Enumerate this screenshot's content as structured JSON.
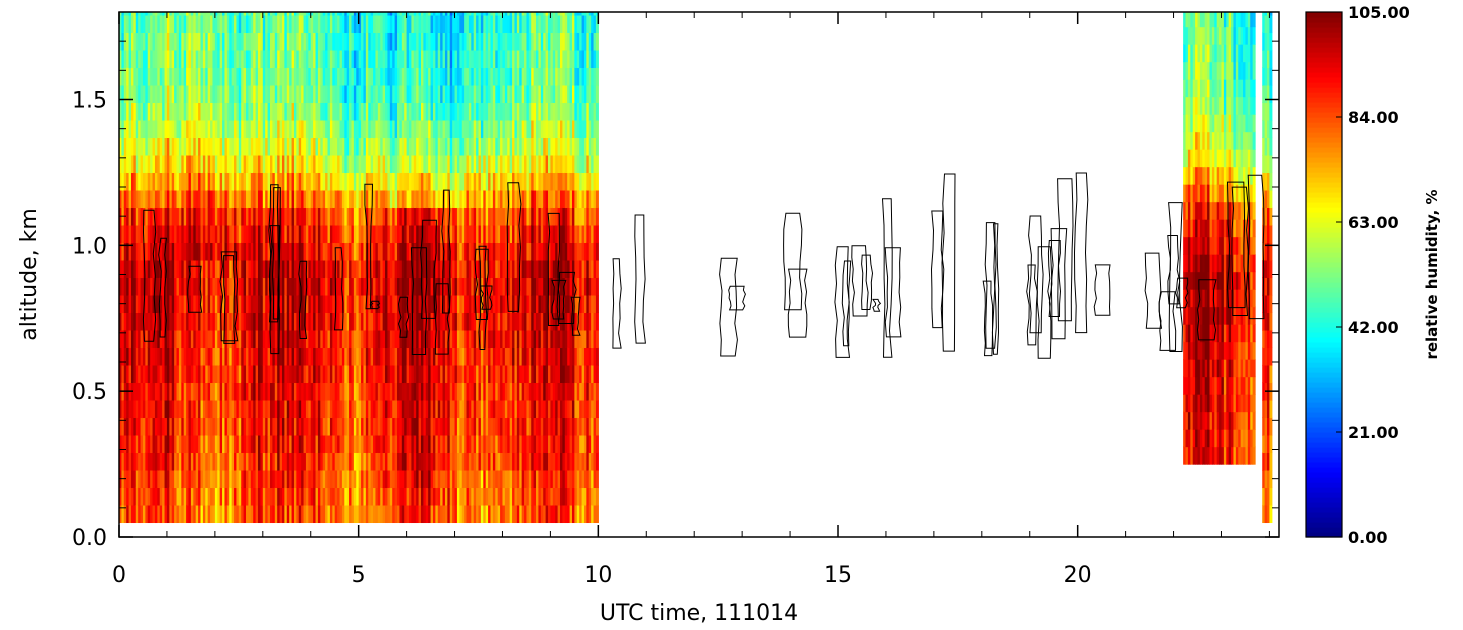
{
  "chart_data": {
    "type": "heatmap",
    "title": "",
    "xlabel": "UTC time, 111014",
    "ylabel": "altitude, km",
    "xlim": [
      0,
      24.2
    ],
    "ylim": [
      0,
      1.8
    ],
    "x_ticks": [
      0,
      5,
      10,
      15,
      20
    ],
    "x_tick_labels": [
      "0",
      "5",
      "10",
      "15",
      "20"
    ],
    "y_ticks": [
      0.0,
      0.5,
      1.0,
      1.5
    ],
    "y_tick_labels": [
      "0.0",
      "0.5",
      "1.0",
      "1.5"
    ],
    "colorbar": {
      "label": "relative humidity, %",
      "min": 0,
      "max": 105,
      "tick_values": [
        0,
        21,
        42,
        63,
        84,
        105
      ],
      "tick_labels": [
        "0.00",
        "21.00",
        "42.00",
        "63.00",
        "84.00",
        "105.00"
      ],
      "colormap": "jet"
    },
    "data_segments": [
      {
        "x_start": 0.0,
        "x_end": 10.0,
        "z_min": 0.05,
        "z_max": 1.8
      },
      {
        "x_start": 22.2,
        "x_end": 23.7,
        "z_min": 0.25,
        "z_max": 1.8
      },
      {
        "x_start": 23.85,
        "x_end": 24.05,
        "z_min": 0.05,
        "z_max": 1.8
      }
    ],
    "rh_profile": [
      {
        "altitude": 0.05,
        "rh": 82
      },
      {
        "altitude": 0.3,
        "rh": 88
      },
      {
        "altitude": 0.6,
        "rh": 92
      },
      {
        "altitude": 0.9,
        "rh": 96
      },
      {
        "altitude": 1.1,
        "rh": 86
      },
      {
        "altitude": 1.3,
        "rh": 62
      },
      {
        "altitude": 1.5,
        "rh": 50
      },
      {
        "altitude": 1.8,
        "rh": 46
      }
    ],
    "contour": {
      "description_level_rh": 100,
      "altitude_range": [
        0.6,
        1.25
      ]
    }
  }
}
